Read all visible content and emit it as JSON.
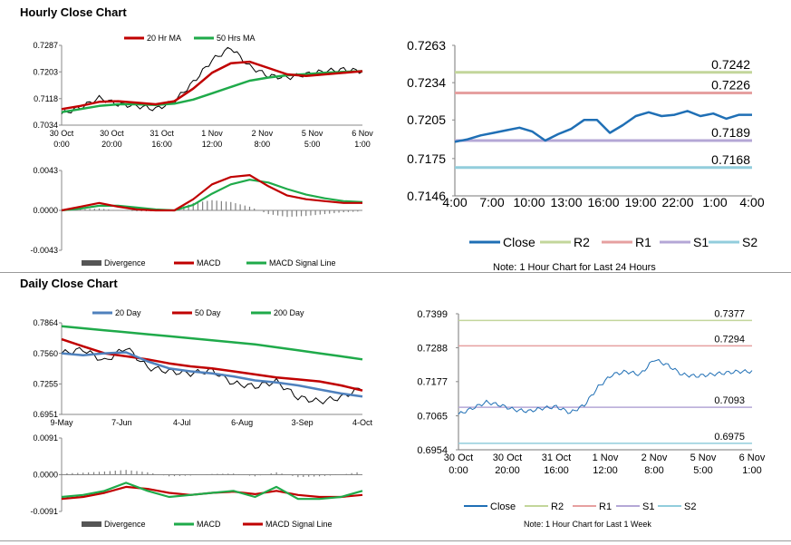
{
  "sections": {
    "hourly_title": "Hourly Close Chart",
    "daily_title": "Daily Close Chart"
  },
  "colors": {
    "ma_short": "#c00000",
    "ma_long": "#1faa4a",
    "day20": "#4f81bd",
    "day50": "#c00000",
    "day200": "#1faa4a",
    "close": "#1f6fb5",
    "r2": "#c3d69b",
    "r1": "#e6a0a0",
    "s1": "#b4a7d6",
    "s2": "#92cddc",
    "divergence": "#808080"
  },
  "chart_data": [
    {
      "id": "hourly-price",
      "type": "line",
      "legend": [
        "20 Hr MA",
        "50 Hrs MA"
      ],
      "y_ticks": [
        "0.7287",
        "0.7203",
        "0.7118",
        "0.7034"
      ],
      "ylim": [
        0.7034,
        0.7287
      ],
      "x_ticks": [
        [
          "30 Oct",
          "0:00"
        ],
        [
          "30 Oct",
          "20:00"
        ],
        [
          "31 Oct",
          "16:00"
        ],
        [
          "1 Nov",
          "12:00"
        ],
        [
          "2 Nov",
          "8:00"
        ],
        [
          "5 Nov",
          "5:00"
        ],
        [
          "6 Nov",
          "1:00"
        ]
      ],
      "series": [
        {
          "name": "20 Hr MA",
          "values": [
            0.7085,
            0.7095,
            0.7108,
            0.711,
            0.7105,
            0.71,
            0.711,
            0.715,
            0.72,
            0.723,
            0.7235,
            0.7215,
            0.7195,
            0.719,
            0.7195,
            0.72,
            0.7205
          ]
        },
        {
          "name": "50 Hrs MA",
          "values": [
            0.7075,
            0.7085,
            0.7095,
            0.71,
            0.71,
            0.7098,
            0.7102,
            0.7115,
            0.7135,
            0.7155,
            0.7175,
            0.7185,
            0.7192,
            0.7196,
            0.72,
            0.7203,
            0.7205
          ]
        },
        {
          "name": "price",
          "values": [
            0.707,
            0.709,
            0.712,
            0.71,
            0.7095,
            0.7085,
            0.711,
            0.717,
            0.724,
            0.728,
            0.722,
            0.719,
            0.7185,
            0.7195,
            0.7205,
            0.721,
            0.7205
          ]
        }
      ]
    },
    {
      "id": "hourly-macd",
      "type": "line",
      "legend": [
        "Divergence",
        "MACD",
        "MACD Signal Line"
      ],
      "y_ticks": [
        "0.0043",
        "0.0000",
        "-0.0043"
      ],
      "ylim": [
        -0.0043,
        0.0043
      ],
      "series": [
        {
          "name": "MACD",
          "values": [
            0.0,
            0.0004,
            0.0008,
            0.0004,
            0.0001,
            0.0,
            0.0,
            0.0012,
            0.0028,
            0.0036,
            0.0038,
            0.0026,
            0.0016,
            0.0012,
            0.001,
            0.0008,
            0.0008
          ]
        },
        {
          "name": "MACD Signal Line",
          "values": [
            0.0,
            0.0002,
            0.0005,
            0.0005,
            0.0003,
            0.0001,
            0.0,
            0.0006,
            0.0018,
            0.0028,
            0.0033,
            0.003,
            0.0023,
            0.0017,
            0.0013,
            0.001,
            0.0009
          ]
        },
        {
          "name": "Divergence",
          "values": [
            0.0,
            0.0001,
            0.0002,
            0.0,
            -0.0001,
            -0.0001,
            0.0001,
            0.0008,
            0.0011,
            0.0009,
            0.0004,
            -0.0004,
            -0.0007,
            -0.0006,
            -0.0004,
            -0.0002,
            -0.0001
          ]
        }
      ]
    },
    {
      "id": "hourly-close",
      "type": "line",
      "y_ticks": [
        "0.7263",
        "0.7234",
        "0.7205",
        "0.7175",
        "0.7146"
      ],
      "ylim": [
        0.7146,
        0.7263
      ],
      "x_ticks": [
        "4:00",
        "7:00",
        "10:00",
        "13:00",
        "16:00",
        "19:00",
        "22:00",
        "1:00",
        "4:00"
      ],
      "levels": [
        {
          "name": "R2",
          "value": 0.7242,
          "label": "0.7242"
        },
        {
          "name": "R1",
          "value": 0.7226,
          "label": "0.7226"
        },
        {
          "name": "S1",
          "value": 0.7189,
          "label": "0.7189"
        },
        {
          "name": "S2",
          "value": 0.7168,
          "label": "0.7168"
        }
      ],
      "series": [
        {
          "name": "Close",
          "values": [
            0.7188,
            0.719,
            0.7193,
            0.7195,
            0.7197,
            0.7199,
            0.7196,
            0.7189,
            0.7194,
            0.7198,
            0.7205,
            0.7205,
            0.7195,
            0.7201,
            0.7208,
            0.7211,
            0.7208,
            0.7209,
            0.7212,
            0.7208,
            0.721,
            0.7206,
            0.7209,
            0.7209
          ]
        }
      ],
      "legend": [
        "Close",
        "R2",
        "R1",
        "S1",
        "S2"
      ],
      "note": "Note: 1 Hour Chart for Last 24 Hours"
    },
    {
      "id": "daily-price",
      "type": "line",
      "legend": [
        "20 Day",
        "50 Day",
        "200 Day"
      ],
      "y_ticks": [
        "0.7864",
        "0.7560",
        "0.7255",
        "0.6951"
      ],
      "ylim": [
        0.6951,
        0.7864
      ],
      "x_ticks": [
        "9-May",
        "7-Jun",
        "4-Jul",
        "6-Aug",
        "3-Sep",
        "4-Oct"
      ],
      "series": [
        {
          "name": "20 Day",
          "values": [
            0.756,
            0.754,
            0.756,
            0.757,
            0.748,
            0.741,
            0.738,
            0.736,
            0.733,
            0.729,
            0.727,
            0.724,
            0.72,
            0.716,
            0.713
          ]
        },
        {
          "name": "50 Day",
          "values": [
            0.77,
            0.763,
            0.756,
            0.753,
            0.75,
            0.746,
            0.743,
            0.741,
            0.738,
            0.735,
            0.732,
            0.73,
            0.728,
            0.724,
            0.719
          ]
        },
        {
          "name": "200 Day",
          "values": [
            0.783,
            0.781,
            0.779,
            0.777,
            0.775,
            0.773,
            0.771,
            0.769,
            0.767,
            0.765,
            0.762,
            0.759,
            0.756,
            0.753,
            0.75
          ]
        },
        {
          "name": "price",
          "values": [
            0.756,
            0.76,
            0.748,
            0.762,
            0.742,
            0.738,
            0.736,
            0.739,
            0.726,
            0.723,
            0.728,
            0.712,
            0.708,
            0.712,
            0.722
          ]
        }
      ]
    },
    {
      "id": "daily-macd",
      "type": "line",
      "legend": [
        "Divergence",
        "MACD",
        "MACD Signal Line"
      ],
      "y_ticks": [
        "0.0091",
        "0.0000",
        "-0.0091"
      ],
      "ylim": [
        -0.0091,
        0.0091
      ],
      "series": [
        {
          "name": "MACD",
          "values": [
            -0.0055,
            -0.005,
            -0.004,
            -0.002,
            -0.004,
            -0.0055,
            -0.005,
            -0.0045,
            -0.004,
            -0.0055,
            -0.003,
            -0.006,
            -0.006,
            -0.0055,
            -0.004
          ]
        },
        {
          "name": "MACD Signal Line",
          "values": [
            -0.006,
            -0.0055,
            -0.0045,
            -0.003,
            -0.0035,
            -0.0045,
            -0.005,
            -0.0045,
            -0.0042,
            -0.0048,
            -0.004,
            -0.005,
            -0.0055,
            -0.0055,
            -0.005
          ]
        },
        {
          "name": "Divergence",
          "values": [
            0.0003,
            0.0005,
            0.0008,
            0.0012,
            0.0006,
            -0.0004,
            -0.0002,
            0.0002,
            0.0003,
            -0.0004,
            0.0006,
            -0.0006,
            -0.0004,
            0.0,
            0.0008
          ]
        }
      ]
    },
    {
      "id": "weekly-close",
      "type": "line",
      "y_ticks": [
        "0.7399",
        "0.7288",
        "0.7177",
        "0.7065",
        "0.6954"
      ],
      "ylim": [
        0.6954,
        0.7399
      ],
      "x_ticks": [
        [
          "30 Oct",
          "0:00"
        ],
        [
          "30 Oct",
          "20:00"
        ],
        [
          "31 Oct",
          "16:00"
        ],
        [
          "1 Nov",
          "12:00"
        ],
        [
          "2 Nov",
          "8:00"
        ],
        [
          "5 Nov",
          "5:00"
        ],
        [
          "6 Nov",
          "1:00"
        ]
      ],
      "levels": [
        {
          "name": "R2",
          "value": 0.7377,
          "label": "0.7377"
        },
        {
          "name": "R1",
          "value": 0.7294,
          "label": "0.7294"
        },
        {
          "name": "S1",
          "value": 0.7093,
          "label": "0.7093"
        },
        {
          "name": "S2",
          "value": 0.6975,
          "label": "0.6975"
        }
      ],
      "series": [
        {
          "name": "Close",
          "values": [
            0.707,
            0.709,
            0.711,
            0.71,
            0.7085,
            0.708,
            0.709,
            0.7095,
            0.7075,
            0.71,
            0.716,
            0.72,
            0.721,
            0.72,
            0.725,
            0.723,
            0.72,
            0.7195,
            0.72,
            0.7205,
            0.721,
            0.721
          ]
        }
      ],
      "legend": [
        "Close",
        "R2",
        "R1",
        "S1",
        "S2"
      ],
      "note": "Note: 1 Hour Chart for Last 1 Week"
    }
  ]
}
